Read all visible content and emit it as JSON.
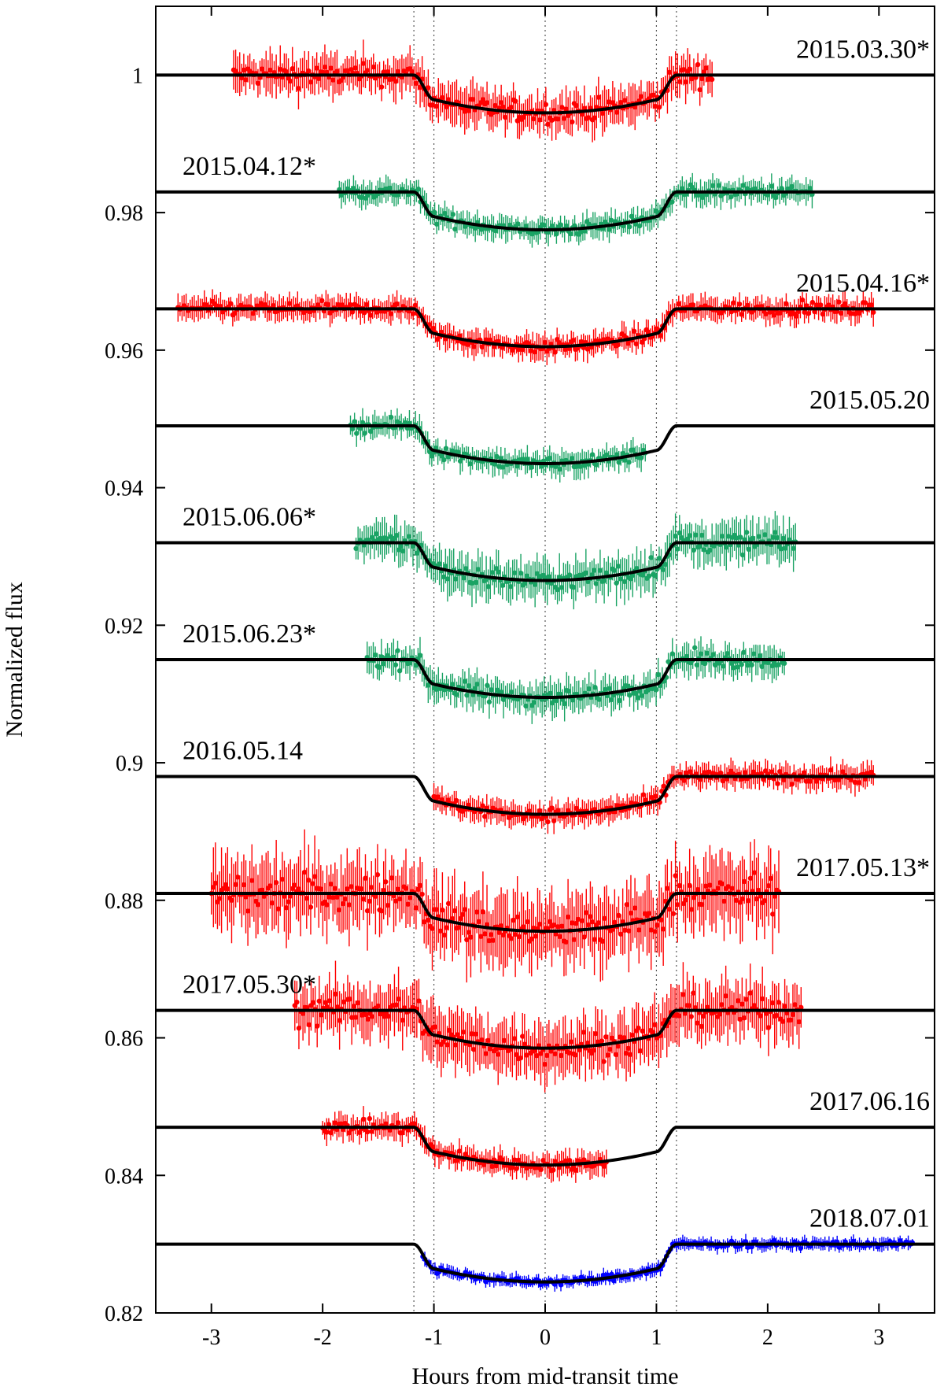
{
  "chart_data": {
    "type": "scatter",
    "xlabel": "Hours from mid-transit time",
    "ylabel": "Normalized flux",
    "xlim": [
      -3.5,
      3.5
    ],
    "ylim": [
      0.82,
      1.01
    ],
    "xticks": [
      -3,
      -2,
      -1,
      0,
      1,
      2,
      3
    ],
    "xtick_labels": [
      "-3",
      "-2",
      "-1",
      "0",
      "1",
      "2",
      "3"
    ],
    "yticks": [
      0.82,
      0.84,
      0.86,
      0.88,
      0.9,
      0.92,
      0.94,
      0.96,
      0.98,
      1.0
    ],
    "ytick_labels": [
      "0.82",
      "0.84",
      "0.86",
      "0.88",
      "0.9",
      "0.92",
      "0.94",
      "0.96",
      "0.98",
      "1"
    ],
    "vertical_reference_lines": [
      -1.18,
      -1.0,
      0.0,
      1.0,
      1.18
    ],
    "grid": false,
    "model_shape": {
      "ingress_start": -1.18,
      "ingress_end": -1.0,
      "egress_start": 1.0,
      "egress_end": 1.18
    },
    "series": [
      {
        "name": "2015.03.30*",
        "color": "#ff0000",
        "baseline": 1.0,
        "depth": 0.0055,
        "x_range": [
          -2.8,
          1.5
        ],
        "noise": 0.0025,
        "label_anchor": "right"
      },
      {
        "name": "2015.04.12*",
        "color": "#1aa364",
        "baseline": 0.983,
        "depth": 0.0055,
        "x_range": [
          -1.85,
          2.4
        ],
        "noise": 0.0015,
        "label_anchor": "left"
      },
      {
        "name": "2015.04.16*",
        "color": "#ff0000",
        "baseline": 0.966,
        "depth": 0.0055,
        "x_range": [
          -3.3,
          2.95
        ],
        "noise": 0.0015,
        "label_anchor": "right"
      },
      {
        "name": "2015.05.20",
        "color": "#1aa364",
        "baseline": 0.949,
        "depth": 0.0055,
        "x_range": [
          -1.75,
          0.9
        ],
        "noise": 0.0015,
        "label_anchor": "right"
      },
      {
        "name": "2015.06.06*",
        "color": "#1aa364",
        "baseline": 0.932,
        "depth": 0.0055,
        "x_range": [
          -1.7,
          2.25
        ],
        "noise": 0.0025,
        "label_anchor": "left"
      },
      {
        "name": "2015.06.23*",
        "color": "#1aa364",
        "baseline": 0.915,
        "depth": 0.0055,
        "x_range": [
          -1.6,
          2.15
        ],
        "noise": 0.002,
        "label_anchor": "left"
      },
      {
        "name": "2016.05.14",
        "color": "#ff0000",
        "baseline": 0.898,
        "depth": 0.0055,
        "x_range": [
          -1.0,
          2.95
        ],
        "noise": 0.0015,
        "label_anchor": "left"
      },
      {
        "name": "2017.05.13*",
        "color": "#ff0000",
        "baseline": 0.881,
        "depth": 0.0055,
        "x_range": [
          -3.0,
          2.1
        ],
        "noise": 0.0045,
        "label_anchor": "right"
      },
      {
        "name": "2017.05.30*",
        "color": "#ff0000",
        "baseline": 0.864,
        "depth": 0.0055,
        "x_range": [
          -2.25,
          2.3
        ],
        "noise": 0.0035,
        "label_anchor": "left"
      },
      {
        "name": "2017.06.16",
        "color": "#ff0000",
        "baseline": 0.847,
        "depth": 0.0055,
        "x_range": [
          -2.0,
          0.55
        ],
        "noise": 0.0015,
        "label_anchor": "right"
      },
      {
        "name": "2018.07.01",
        "color": "#0000ff",
        "baseline": 0.83,
        "depth": 0.0055,
        "x_range": [
          -1.1,
          3.3
        ],
        "noise": 0.0008,
        "label_anchor": "right"
      }
    ]
  }
}
